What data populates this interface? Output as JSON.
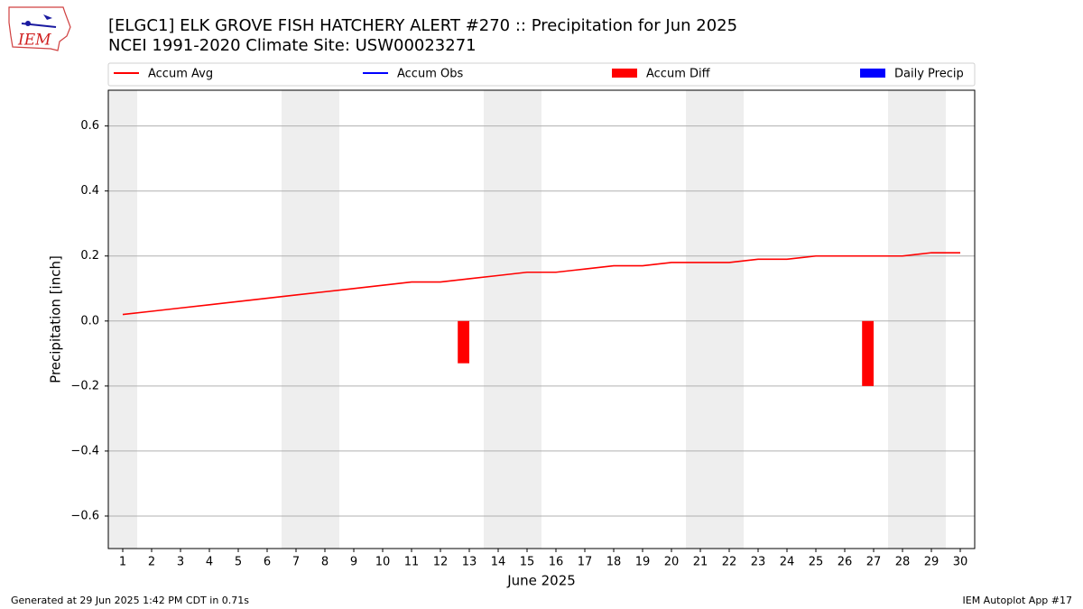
{
  "logo_text": "IEM",
  "footer": {
    "left": "Generated at 29 Jun 2025 1:42 PM CDT in 0.71s",
    "right": "IEM Autoplot App #17"
  },
  "chart_data": {
    "type": "bar",
    "title": "[ELGC1] ELK GROVE FISH HATCHERY ALERT #270 :: Precipitation for Jun 2025",
    "subtitle": "NCEI 1991-2020 Climate Site: USW00023271",
    "y_label": "Precipitation [inch]",
    "x_label": "June 2025",
    "x": [
      1,
      2,
      3,
      4,
      5,
      6,
      7,
      8,
      9,
      10,
      11,
      12,
      13,
      14,
      15,
      16,
      17,
      18,
      19,
      20,
      21,
      22,
      23,
      24,
      25,
      26,
      27,
      28,
      29,
      30
    ],
    "series": [
      {
        "name": "Accum Avg",
        "kind": "line",
        "color": "#ff0000",
        "values": [
          0.02,
          0.03,
          0.04,
          0.05,
          0.06,
          0.07,
          0.08,
          0.09,
          0.1,
          0.11,
          0.12,
          0.12,
          0.13,
          0.14,
          0.15,
          0.15,
          0.16,
          0.17,
          0.17,
          0.18,
          0.18,
          0.18,
          0.19,
          0.19,
          0.2,
          0.2,
          0.2,
          0.2,
          0.21,
          0.21
        ]
      },
      {
        "name": "Accum Obs",
        "kind": "line",
        "color": "#0000ff",
        "values": [
          null,
          null,
          null,
          null,
          null,
          null,
          null,
          null,
          null,
          null,
          null,
          null,
          null,
          null,
          null,
          null,
          null,
          null,
          null,
          null,
          null,
          null,
          null,
          null,
          null,
          null,
          null,
          null,
          null,
          null
        ]
      },
      {
        "name": "Accum Diff",
        "kind": "bar",
        "color": "#ff0000",
        "values": [
          null,
          null,
          null,
          null,
          null,
          null,
          null,
          null,
          null,
          null,
          null,
          null,
          -0.13,
          null,
          null,
          null,
          null,
          null,
          null,
          null,
          null,
          null,
          null,
          null,
          null,
          null,
          -0.2,
          null,
          null,
          null
        ]
      },
      {
        "name": "Daily Precip",
        "kind": "bar",
        "color": "#0000ff",
        "values": [
          null,
          null,
          null,
          null,
          null,
          null,
          null,
          null,
          null,
          null,
          null,
          null,
          null,
          null,
          null,
          null,
          null,
          null,
          null,
          null,
          null,
          null,
          null,
          null,
          null,
          null,
          null,
          null,
          null,
          null
        ]
      }
    ],
    "shaded_days": [
      1,
      7,
      8,
      14,
      15,
      21,
      22,
      28,
      29
    ],
    "xlim": [
      0.5,
      30.5
    ],
    "xticks": [
      1,
      2,
      3,
      4,
      5,
      6,
      7,
      8,
      9,
      10,
      11,
      12,
      13,
      14,
      15,
      16,
      17,
      18,
      19,
      20,
      21,
      22,
      23,
      24,
      25,
      26,
      27,
      28,
      29,
      30
    ],
    "ylim": [
      -0.7,
      0.71
    ],
    "yticks": [
      {
        "value": -0.6,
        "label": "−0.6"
      },
      {
        "value": -0.4,
        "label": "−0.4"
      },
      {
        "value": -0.2,
        "label": "−0.2"
      },
      {
        "value": 0,
        "label": "0.0"
      },
      0.2,
      0.4,
      0.6
    ],
    "grid": true
  }
}
